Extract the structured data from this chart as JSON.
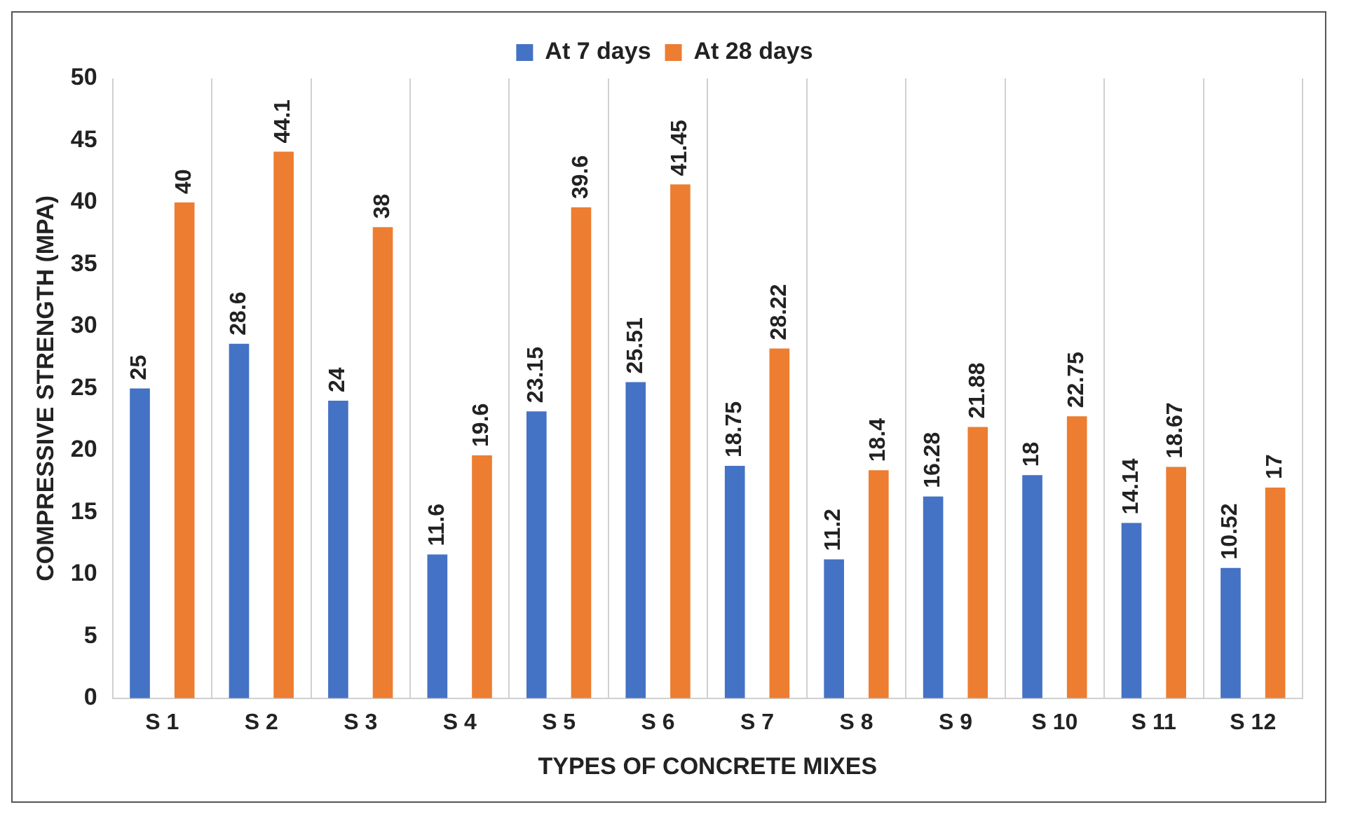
{
  "chart_data": {
    "type": "bar",
    "xlabel": "TYPES OF CONCRETE MIXES",
    "ylabel": "COMPRESSIVE STRENGTH (MPA)",
    "categories": [
      "S 1",
      "S 2",
      "S 3",
      "S 4",
      "S 5",
      "S 6",
      "S 7",
      "S 8",
      "S 9",
      "S 10",
      "S 11",
      "S 12"
    ],
    "series": [
      {
        "name": "At 7 days",
        "color": "#4472c4",
        "values": [
          25,
          28.6,
          24,
          11.6,
          23.15,
          25.51,
          18.75,
          11.2,
          16.28,
          18,
          14.14,
          10.52
        ]
      },
      {
        "name": "At 28 days",
        "color": "#ed7d31",
        "values": [
          40,
          44.1,
          38,
          19.6,
          39.6,
          41.45,
          28.22,
          18.4,
          21.88,
          22.75,
          18.67,
          17
        ]
      }
    ],
    "ylim": [
      0,
      50
    ],
    "yticks": [
      0,
      5,
      10,
      15,
      20,
      25,
      30,
      35,
      40,
      45,
      50
    ],
    "grid": "x",
    "legend": "top",
    "data_labels": true
  }
}
